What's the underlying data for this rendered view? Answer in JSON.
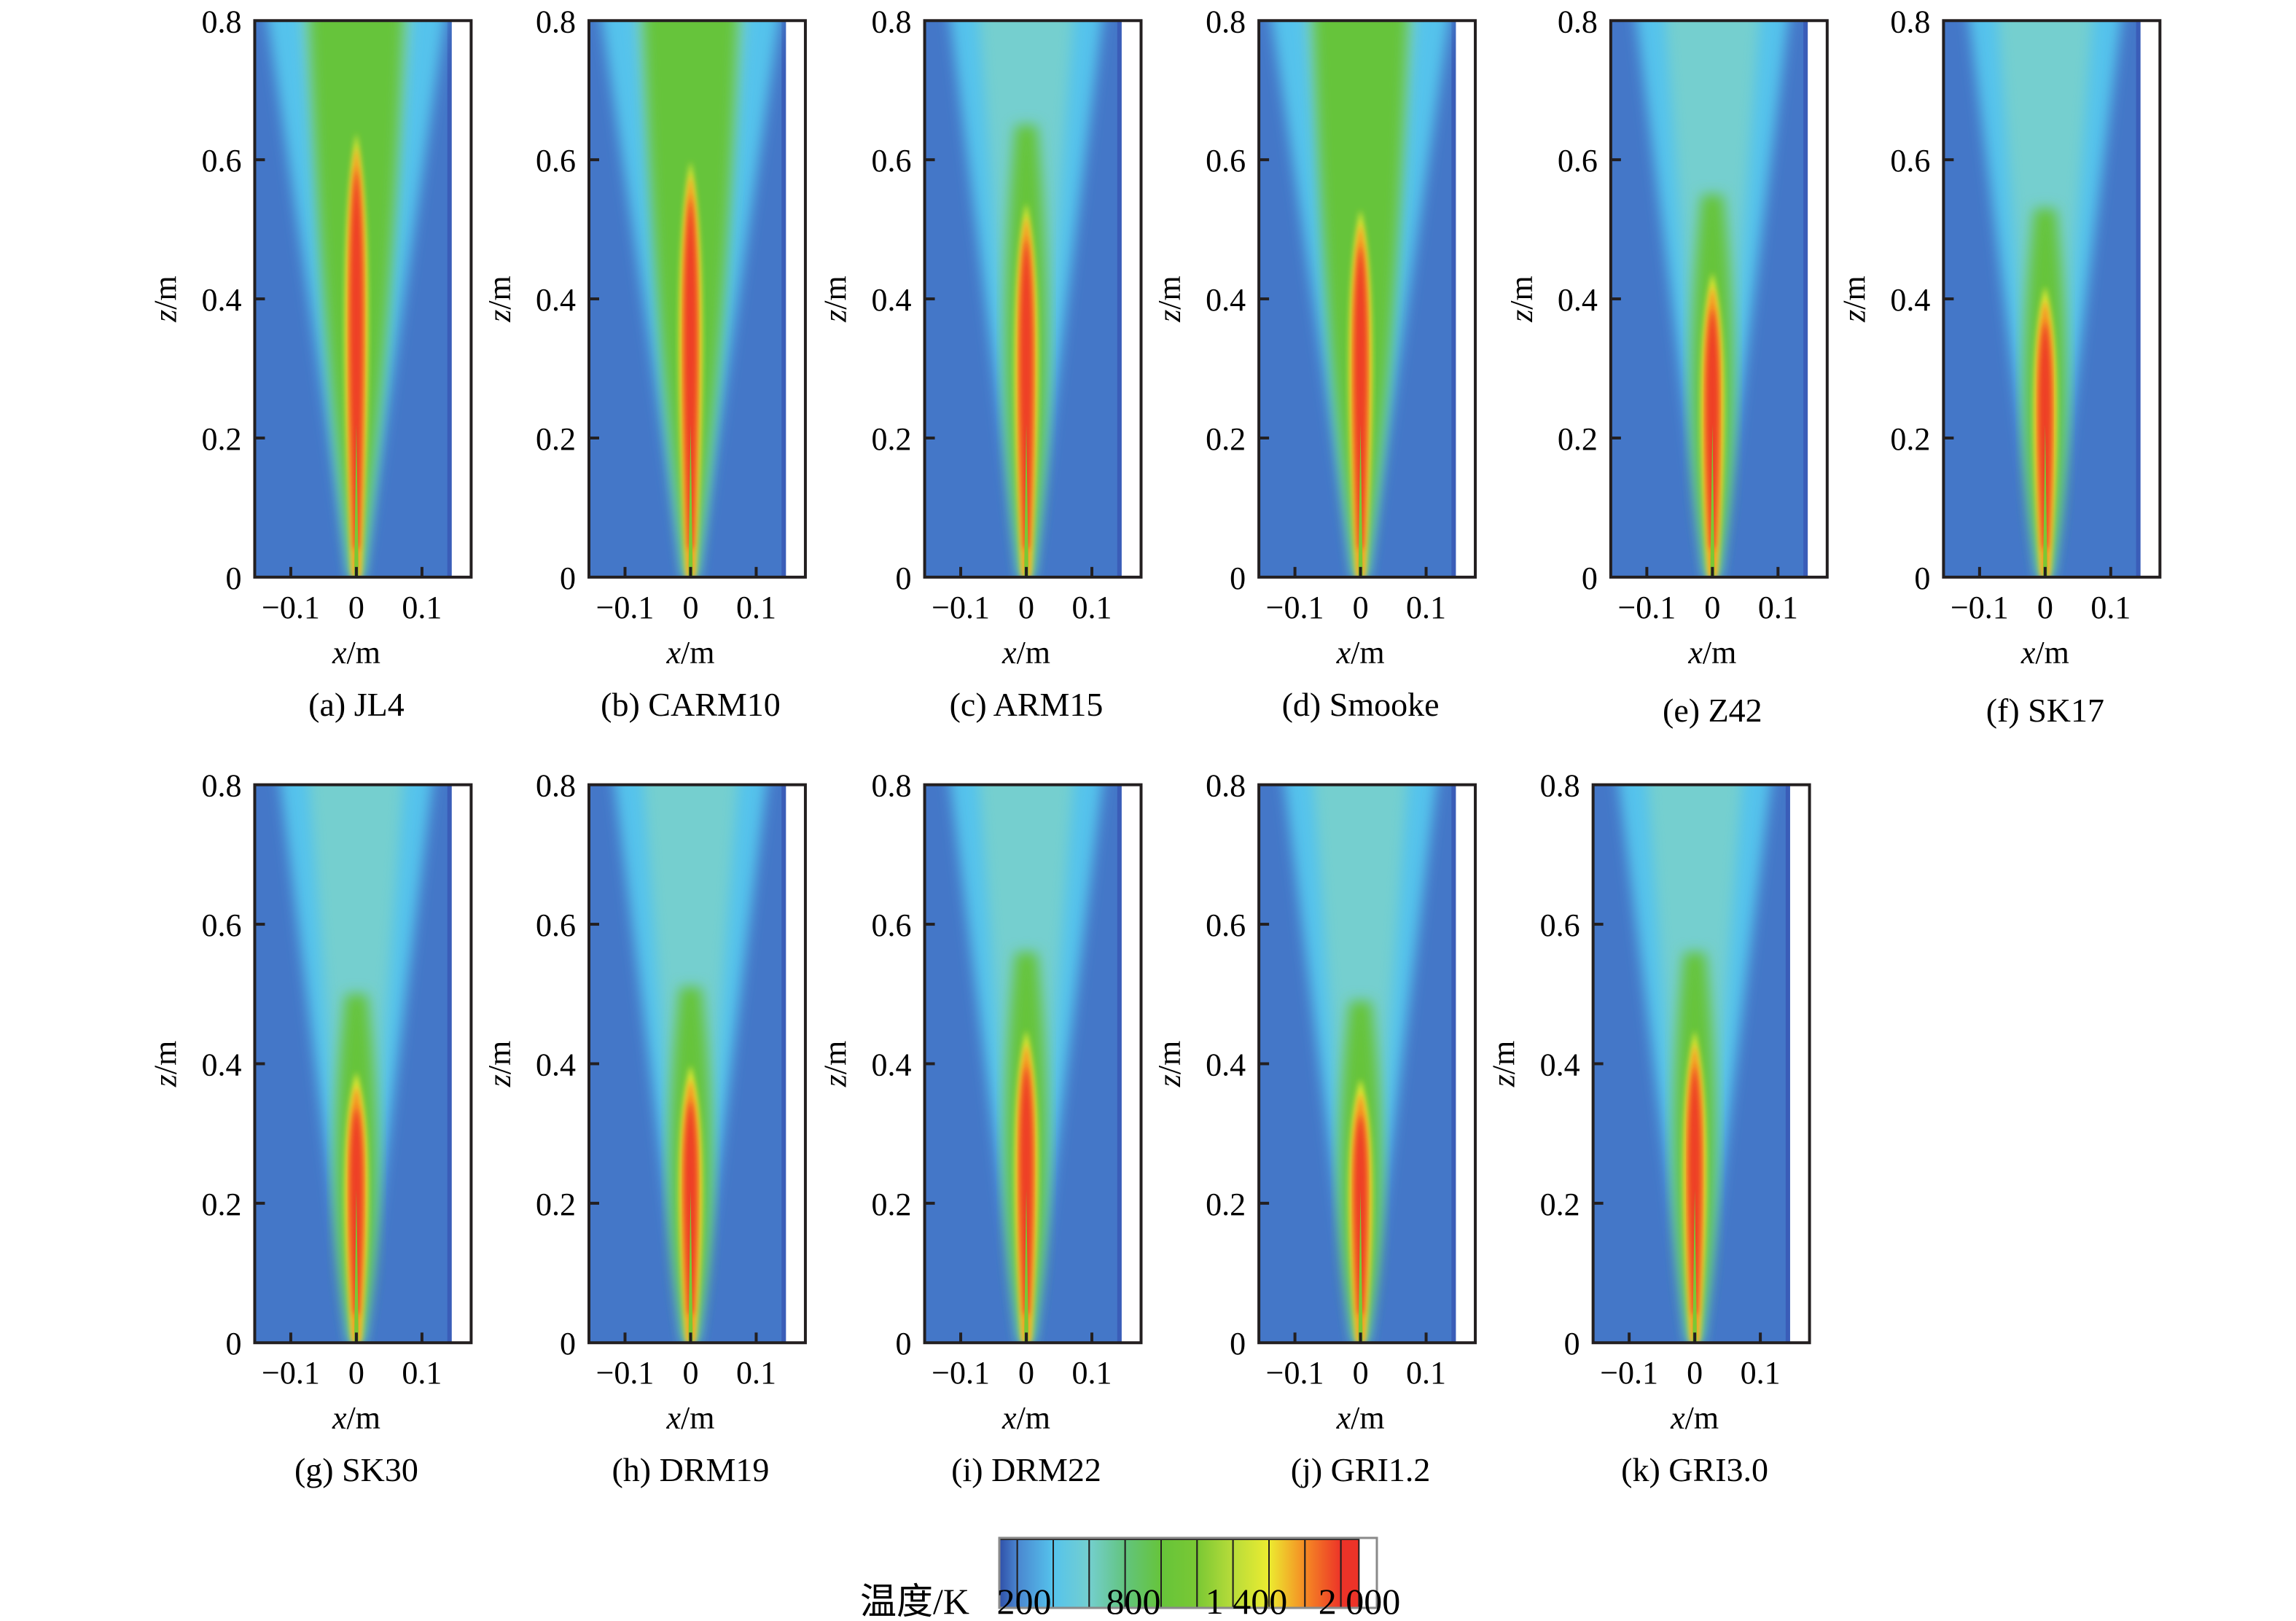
{
  "chart_data": {
    "type": "heatmap",
    "title": "",
    "colorbar": {
      "label": "温度/K",
      "ticks": [
        "200",
        "800",
        "1 400",
        "2 000"
      ],
      "tick_values": [
        200,
        800,
        1400,
        2000
      ],
      "range": [
        200,
        2100
      ],
      "colors": [
        "#2f4fa8",
        "#4a86d0",
        "#55c3ec",
        "#74cfcf",
        "#62c47e",
        "#66c43a",
        "#7ac834",
        "#b8dc3a",
        "#ecec30",
        "#f58a24",
        "#ec3328"
      ]
    },
    "panels": [
      {
        "id": "a",
        "caption": "(a) JL4",
        "flame_core_tip_z": 0.63,
        "hot_core_peak_z": 0.48,
        "plume_top_color": "green"
      },
      {
        "id": "b",
        "caption": "(b) CARM10",
        "flame_core_tip_z": 0.59,
        "hot_core_peak_z": 0.44,
        "plume_top_color": "green"
      },
      {
        "id": "c",
        "caption": "(c) ARM15",
        "flame_core_tip_z": 0.53,
        "hot_core_peak_z": 0.4,
        "plume_top_color": "cyan-green"
      },
      {
        "id": "d",
        "caption": "(d) Smooke",
        "flame_core_tip_z": 0.52,
        "hot_core_peak_z": 0.4,
        "plume_top_color": "green"
      },
      {
        "id": "e",
        "caption": "(e) Z42",
        "flame_core_tip_z": 0.43,
        "hot_core_peak_z": 0.32,
        "plume_top_color": "cyan"
      },
      {
        "id": "f",
        "caption": "(f) SK17",
        "flame_core_tip_z": 0.41,
        "hot_core_peak_z": 0.31,
        "plume_top_color": "cyan"
      },
      {
        "id": "g",
        "caption": "(g) SK30",
        "flame_core_tip_z": 0.38,
        "hot_core_peak_z": 0.29,
        "plume_top_color": "cyan"
      },
      {
        "id": "h",
        "caption": "(h) DRM19",
        "flame_core_tip_z": 0.39,
        "hot_core_peak_z": 0.29,
        "plume_top_color": "cyan"
      },
      {
        "id": "i",
        "caption": "(i) DRM22",
        "flame_core_tip_z": 0.44,
        "hot_core_peak_z": 0.33,
        "plume_top_color": "cyan"
      },
      {
        "id": "j",
        "caption": "(j) GRI1.2",
        "flame_core_tip_z": 0.37,
        "hot_core_peak_z": 0.28,
        "plume_top_color": "cyan"
      },
      {
        "id": "k",
        "caption": "(k) GRI3.0",
        "flame_core_tip_z": 0.44,
        "hot_core_peak_z": 0.32,
        "plume_top_color": "cyan"
      }
    ],
    "xlabel": "x/m",
    "ylabel": "z/m",
    "xlim": [
      -0.155,
      0.175
    ],
    "ylim": [
      0,
      0.8
    ],
    "xticks": [
      "−0.1",
      "0",
      "0.1"
    ],
    "xtick_values": [
      -0.1,
      0,
      0.1
    ],
    "yticks": [
      "0",
      "0.2",
      "0.4",
      "0.6",
      "0.8"
    ],
    "ytick_values": [
      0,
      0.2,
      0.4,
      0.6,
      0.8
    ],
    "grid": false,
    "background_temperature_K": 300
  }
}
